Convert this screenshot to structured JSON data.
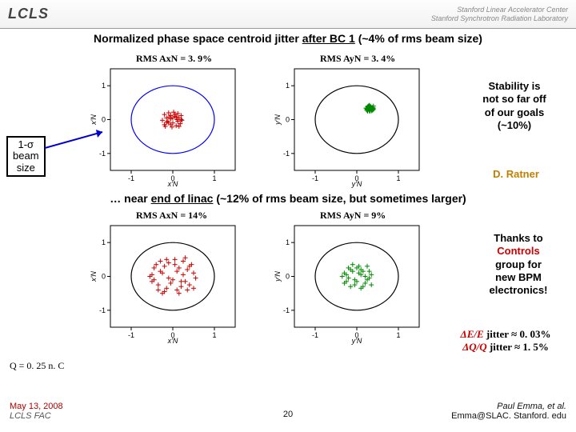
{
  "header": {
    "logo": "LCLS",
    "lab_line1": "Stanford Linear Accelerator Center",
    "lab_line2": "Stanford Synchrotron Radiation Laboratory"
  },
  "title1_pre": "Normalized phase space centroid jitter ",
  "title1_ul": "after BC 1",
  "title1_post": " (~4% of rms beam size)",
  "title2_pre": "… near ",
  "title2_ul": "end of linac",
  "title2_post": " (~12% of rms beam size, but sometimes larger)",
  "rms_x1": "RMS AxN = 3. 9%",
  "rms_y1": "RMS AyN = 3. 4%",
  "rms_x2": "RMS AxN = 14%",
  "rms_y2": "RMS AyN = 9%",
  "sigma_box_l1": "1-σ",
  "sigma_box_l2": "beam",
  "sigma_box_l3": "size",
  "note1_l1": "Stability is",
  "note1_l2": "not so far off",
  "note1_l3": "of our goals",
  "note1_l4": "(~10%)",
  "credit1": "D. Ratner",
  "note2_l1": "Thanks to",
  "note2_l2": "Controls",
  "note2_l3": "group for",
  "note2_l4": "new BPM",
  "note2_l5": "electronics!",
  "jitter1_pre": "ΔE/E",
  "jitter1_post": " jitter ≈ 0. 03%",
  "jitter2_pre": "ΔQ/Q",
  "jitter2_post": " jitter ≈ 1. 5%",
  "q_label": "Q = 0. 25 n. C",
  "footer": {
    "date": "May 13, 2008",
    "org": "LCLS FAC",
    "page": "20",
    "author": "Paul Emma, et al.",
    "email": "Emma@SLAC. Stanford. edu"
  },
  "charts": {
    "common": {
      "xlim": [
        -1.5,
        1.5
      ],
      "ylim": [
        -1.5,
        1.5
      ],
      "ticks": [
        -1,
        0,
        1
      ],
      "circle_r": 1.0,
      "bg": "#ffffff",
      "axis_color": "#000000",
      "circle_stroke_tl": "#0000ff",
      "circle_stroke_other": "#000000",
      "marker": "plus",
      "marker_size": 3
    },
    "top_left": {
      "xlabel": "x'N",
      "ylabel": "x'N",
      "point_color": "#cc0000",
      "points": [
        [
          -0.05,
          0.02
        ],
        [
          -0.15,
          -0.08
        ],
        [
          0.05,
          0.1
        ],
        [
          0.12,
          -0.05
        ],
        [
          -0.2,
          0.15
        ],
        [
          0.08,
          -0.18
        ],
        [
          -0.1,
          0.2
        ],
        [
          0.15,
          0.05
        ],
        [
          -0.05,
          -0.15
        ],
        [
          0.2,
          0.12
        ],
        [
          -0.25,
          -0.02
        ],
        [
          0.02,
          0.22
        ],
        [
          -0.18,
          -0.2
        ],
        [
          0.1,
          0.0
        ],
        [
          0.0,
          -0.1
        ],
        [
          -0.08,
          0.08
        ],
        [
          0.18,
          -0.12
        ],
        [
          -0.12,
          -0.05
        ],
        [
          0.05,
          0.15
        ],
        [
          -0.15,
          0.05
        ],
        [
          0.22,
          -0.02
        ],
        [
          -0.02,
          -0.22
        ],
        [
          0.12,
          0.18
        ],
        [
          -0.2,
          -0.15
        ],
        [
          0.0,
          0.05
        ],
        [
          0.15,
          -0.2
        ],
        [
          -0.05,
          0.12
        ],
        [
          0.08,
          0.08
        ],
        [
          -0.1,
          -0.1
        ],
        [
          0.2,
          0.0
        ]
      ]
    },
    "top_right": {
      "xlabel": "y'N",
      "ylabel": "y'N",
      "point_color": "#008800",
      "points": [
        [
          0.3,
          0.35
        ],
        [
          0.25,
          0.3
        ],
        [
          0.35,
          0.28
        ],
        [
          0.28,
          0.4
        ],
        [
          0.32,
          0.32
        ],
        [
          0.38,
          0.36
        ],
        [
          0.26,
          0.25
        ],
        [
          0.4,
          0.3
        ],
        [
          0.3,
          0.42
        ],
        [
          0.22,
          0.34
        ],
        [
          0.36,
          0.26
        ],
        [
          0.34,
          0.38
        ],
        [
          0.28,
          0.3
        ],
        [
          0.4,
          0.4
        ],
        [
          0.24,
          0.28
        ],
        [
          0.32,
          0.25
        ],
        [
          0.3,
          0.3
        ],
        [
          0.36,
          0.34
        ],
        [
          0.26,
          0.38
        ],
        [
          0.38,
          0.28
        ],
        [
          0.3,
          0.26
        ],
        [
          0.34,
          0.32
        ],
        [
          0.28,
          0.36
        ],
        [
          0.4,
          0.34
        ],
        [
          0.24,
          0.32
        ],
        [
          0.32,
          0.4
        ],
        [
          0.36,
          0.3
        ],
        [
          0.3,
          0.38
        ],
        [
          0.26,
          0.3
        ],
        [
          0.38,
          0.32
        ]
      ]
    },
    "bottom_left": {
      "xlabel": "x'N",
      "ylabel": "x'N",
      "point_color": "#cc0000",
      "points": [
        [
          -0.2,
          0.3
        ],
        [
          0.1,
          -0.4
        ],
        [
          0.35,
          0.2
        ],
        [
          -0.45,
          -0.1
        ],
        [
          0.25,
          0.45
        ],
        [
          -0.15,
          -0.35
        ],
        [
          0.4,
          -0.25
        ],
        [
          -0.3,
          0.15
        ],
        [
          0.05,
          0.5
        ],
        [
          -0.5,
          0.05
        ],
        [
          0.3,
          -0.15
        ],
        [
          -0.1,
          0.4
        ],
        [
          0.5,
          0.1
        ],
        [
          -0.25,
          -0.5
        ],
        [
          0.15,
          0.25
        ],
        [
          -0.4,
          0.35
        ],
        [
          0.2,
          -0.3
        ],
        [
          -0.05,
          -0.2
        ],
        [
          0.45,
          0.35
        ],
        [
          -0.35,
          -0.25
        ],
        [
          0.1,
          0.15
        ],
        [
          -0.2,
          -0.45
        ],
        [
          0.55,
          -0.05
        ],
        [
          -0.15,
          0.5
        ],
        [
          0.0,
          -0.1
        ],
        [
          0.35,
          -0.4
        ],
        [
          -0.5,
          -0.15
        ],
        [
          0.25,
          0.05
        ],
        [
          -0.3,
          0.45
        ],
        [
          0.4,
          0.3
        ],
        [
          -0.1,
          -0.05
        ],
        [
          0.15,
          -0.5
        ],
        [
          -0.45,
          0.25
        ],
        [
          0.5,
          -0.35
        ],
        [
          -0.25,
          0.1
        ],
        [
          0.3,
          0.55
        ],
        [
          -0.35,
          -0.4
        ],
        [
          0.05,
          0.35
        ],
        [
          -0.55,
          0.0
        ],
        [
          0.2,
          -0.15
        ]
      ]
    },
    "bottom_right": {
      "xlabel": "y'N",
      "ylabel": "y'N",
      "point_color": "#008800",
      "points": [
        [
          0.1,
          0.05
        ],
        [
          -0.15,
          0.2
        ],
        [
          0.25,
          -0.1
        ],
        [
          -0.05,
          -0.25
        ],
        [
          0.3,
          0.15
        ],
        [
          -0.2,
          -0.05
        ],
        [
          0.05,
          0.3
        ],
        [
          -0.3,
          0.1
        ],
        [
          0.2,
          -0.2
        ],
        [
          -0.1,
          0.15
        ],
        [
          0.35,
          0.05
        ],
        [
          -0.25,
          -0.15
        ],
        [
          0.0,
          0.25
        ],
        [
          0.15,
          -0.3
        ],
        [
          -0.35,
          0.0
        ],
        [
          0.1,
          0.2
        ],
        [
          -0.05,
          -0.1
        ],
        [
          0.25,
          0.3
        ],
        [
          -0.2,
          0.25
        ],
        [
          0.3,
          -0.05
        ],
        [
          -0.15,
          -0.3
        ],
        [
          0.05,
          0.1
        ],
        [
          -0.3,
          -0.2
        ],
        [
          0.2,
          0.0
        ],
        [
          0.0,
          -0.15
        ],
        [
          0.35,
          -0.25
        ],
        [
          -0.1,
          0.35
        ],
        [
          0.15,
          0.15
        ],
        [
          -0.25,
          0.05
        ],
        [
          0.1,
          -0.35
        ]
      ]
    }
  }
}
